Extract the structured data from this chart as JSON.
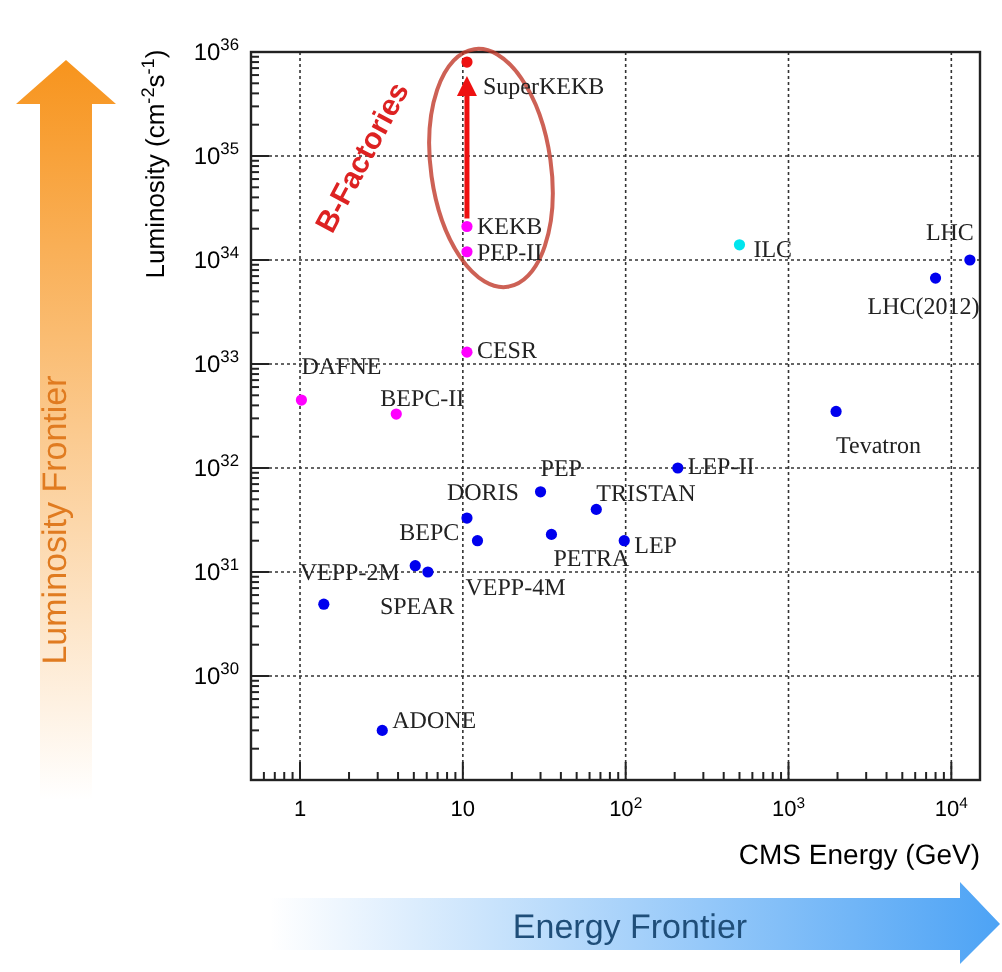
{
  "chart_data": {
    "type": "scatter",
    "xlabel": "CMS Energy (GeV)",
    "ylabel": "Luminosity (cm$^{-2}$s$^{-1}$)",
    "log": "xy",
    "grid": true,
    "marker": "circle",
    "xlim": [
      0.5,
      15000
    ],
    "ylim": [
      1e+29,
      1e+36
    ],
    "xticks": [
      1,
      10,
      {
        "value": 100,
        "label": "10$^{2}$"
      },
      {
        "value": 1000,
        "label": "10$^{3}$"
      },
      {
        "value": 10000,
        "label": "10$^{4}$"
      }
    ],
    "yticks": [
      {
        "value": 1e+30,
        "label": "10$^{30}$"
      },
      {
        "value": 1e+31,
        "label": "10$^{31}$"
      },
      {
        "value": 1e+32,
        "label": "10$^{32}$"
      },
      {
        "value": 1e+33,
        "label": "10$^{33}$"
      },
      {
        "value": 1e+34,
        "label": "10$^{34}$"
      },
      {
        "value": 1e+35,
        "label": "10$^{35}$"
      },
      {
        "value": 1e+36,
        "label": "10$^{36}$"
      }
    ],
    "series": [
      {
        "color": "#0000ee",
        "x": [
          10.6,
          12.3,
          5.1,
          6.1,
          1.4,
          30,
          35,
          66,
          98,
          209,
          1960,
          13000,
          8000,
          3.2
        ],
        "values": [
          3.3e+31,
          2e+31,
          1.15e+31,
          1e+31,
          4.9e+30,
          5.9e+31,
          2.3e+31,
          4e+31,
          2e+31,
          1e+32,
          3.5e+32,
          1e+34,
          6.7e+33,
          3e+29
        ]
      },
      {
        "color": "#ff00ff",
        "x": [
          10.6,
          10.6,
          10.6,
          1.02,
          3.9
        ],
        "values": [
          2.1e+34,
          1.2e+34,
          1.3e+33,
          4.5e+32,
          3.3e+32
        ]
      },
      {
        "color": "#ee1111",
        "x": [
          10.6
        ],
        "values": [
          8e+35
        ]
      },
      {
        "color": "#00e5ee",
        "x": [
          500
        ],
        "values": [
          1.4e+34
        ]
      }
    ],
    "annotations": [
      "B-Factories",
      "Luminosity Frontier",
      "Energy Frontier",
      {
        "text": "SuperKEKB",
        "x": 10.6,
        "y": 8e+35
      },
      {
        "text": "KEKB",
        "x": 10.6,
        "y": 2.1e+34
      },
      {
        "text": "PEP-II",
        "x": 10.6,
        "y": 1.2e+34
      },
      {
        "text": "CESR",
        "x": 10.6,
        "y": 1.3e+33
      },
      {
        "text": "DAFNE",
        "x": 1.02,
        "y": 4.5e+32
      },
      {
        "text": "BEPC-II",
        "x": 3.9,
        "y": 3.3e+32
      },
      {
        "text": "PEP",
        "x": 30,
        "y": 5.9e+31
      },
      {
        "text": "DORIS",
        "x": 10.6,
        "y": 3.3e+31
      },
      {
        "text": "BEPC",
        "x": 5.1,
        "y": 1.15e+31
      },
      {
        "text": "VEPP-2M",
        "x": 1.4,
        "y": 4.9e+30
      },
      {
        "text": "SPEAR",
        "x": 6.1,
        "y": 1e+31
      },
      {
        "text": "VEPP-4M",
        "x": 12.3,
        "y": 2e+31
      },
      {
        "text": "PETRA",
        "x": 35,
        "y": 2.3e+31
      },
      {
        "text": "TRISTAN",
        "x": 66,
        "y": 4e+31
      },
      {
        "text": "LEP",
        "x": 98,
        "y": 2e+31
      },
      {
        "text": "LEP-II",
        "x": 209,
        "y": 1e+32
      },
      {
        "text": "Tevatron",
        "x": 1960,
        "y": 3.5e+32
      },
      {
        "text": "ILC",
        "x": 500,
        "y": 1.4e+34
      },
      {
        "text": "LHC",
        "x": 13000,
        "y": 1e+34
      },
      {
        "text": "LHC(2012)",
        "x": 8000,
        "y": 6.7e+33
      },
      {
        "text": "ADONE",
        "x": 3.2,
        "y": 3e+29
      }
    ]
  }
}
